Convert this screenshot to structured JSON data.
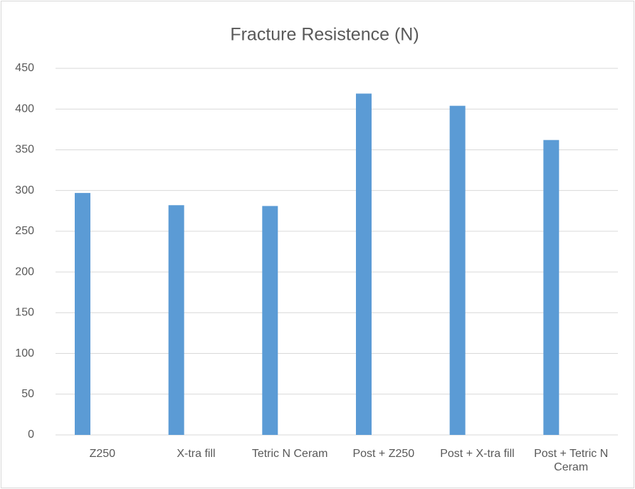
{
  "chart_data": {
    "type": "bar",
    "title": "Fracture Resistence (N)",
    "categories": [
      "Z250",
      "X-tra fill",
      "Tetric N Ceram",
      "Post + Z250",
      "Post + X-tra fill",
      "Post + Tetric N Ceram"
    ],
    "values": [
      297,
      282,
      281,
      419,
      404,
      362
    ],
    "color": "#5b9bd5",
    "ylim": [
      0,
      450
    ],
    "yticks": [
      0,
      50,
      100,
      150,
      200,
      250,
      300,
      350,
      400,
      450
    ],
    "grid": true
  }
}
